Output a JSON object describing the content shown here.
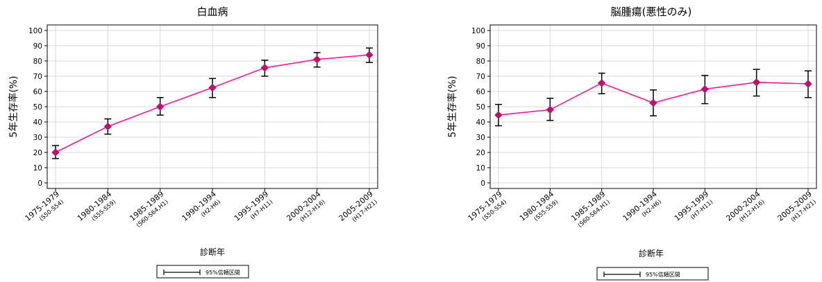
{
  "colors": {
    "series": "#ff1493",
    "marker": "#c0106e",
    "errorbar": "#000000",
    "grid": "#d9d9d9"
  },
  "chart_data": [
    {
      "type": "line",
      "title": "白血病",
      "xlabel": "診断年",
      "ylabel": "5年生存率(%)",
      "ylim": [
        0,
        100
      ],
      "yticks": [
        0,
        10,
        20,
        30,
        40,
        50,
        60,
        70,
        80,
        90,
        100
      ],
      "grid": true,
      "categories": [
        "1975-1979",
        "1980-1984",
        "1985-1989",
        "1990-1994",
        "1995-1999",
        "2000-2004",
        "2005-2009"
      ],
      "category_sublabels": [
        "(S50-S54)",
        "(S55-S59)",
        "(S60-S64,H1)",
        "(H2-H6)",
        "(H7-H11)",
        "(H12-H16)",
        "(H17-H21)"
      ],
      "values": [
        20,
        37,
        50,
        62.5,
        75.5,
        81,
        84
      ],
      "ci_lower": [
        16,
        32,
        44.5,
        56,
        70,
        76,
        79
      ],
      "ci_upper": [
        24.5,
        42,
        56,
        68.5,
        80.5,
        85.5,
        88.5
      ],
      "legend": {
        "label": "95%信頼区間",
        "position": "bottom"
      }
    },
    {
      "type": "line",
      "title": "脳腫瘍(悪性のみ)",
      "xlabel": "診断年",
      "ylabel": "5年生存率(%)",
      "ylim": [
        0,
        100
      ],
      "yticks": [
        0,
        10,
        20,
        30,
        40,
        50,
        60,
        70,
        80,
        90,
        100
      ],
      "grid": true,
      "categories": [
        "1975-1979",
        "1980-1984",
        "1985-1989",
        "1990-1994",
        "1995-1999",
        "2000-2004",
        "2005-2009"
      ],
      "category_sublabels": [
        "(S50-S54)",
        "(S55-S59)",
        "(S60-S64,H1)",
        "(H2-H6)",
        "(H7-H11)",
        "(H12-H16)",
        "(H17-H21)"
      ],
      "values": [
        44.5,
        48,
        65.5,
        52.5,
        61.5,
        66,
        65
      ],
      "ci_lower": [
        37.5,
        41,
        58.5,
        44,
        52,
        57,
        56
      ],
      "ci_upper": [
        51.5,
        55.5,
        72,
        61,
        70.5,
        74.5,
        73.5
      ],
      "legend": {
        "label": "95%信頼区間",
        "position": "bottom"
      }
    }
  ]
}
